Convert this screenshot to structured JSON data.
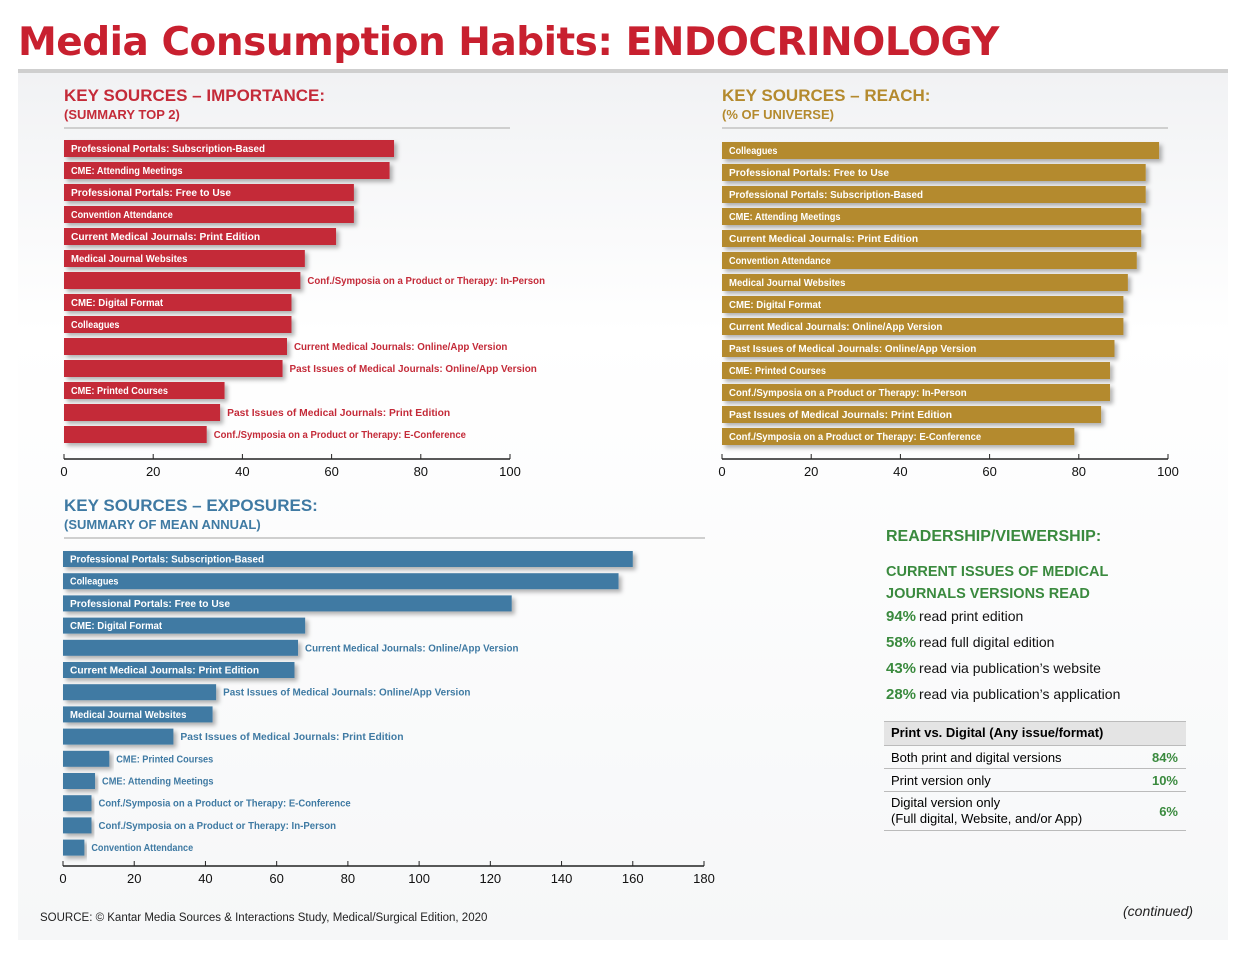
{
  "title": "Media Consumption Habits: ENDOCRINOLOGY",
  "colors": {
    "importance": "#c42b39",
    "reach": "#b48a2e",
    "exposures": "#3f7aa3",
    "title": "#c8202f",
    "green": "#3a8a3e"
  },
  "importance": {
    "title": "KEY SOURCES – IMPORTANCE:",
    "subtitle": "(SUMMARY TOP 2)",
    "chart_data": {
      "type": "bar",
      "orientation": "horizontal",
      "categories": [
        "Professional Portals: Subscription-Based",
        "CME: Attending Meetings",
        "Professional Portals: Free to Use",
        "Convention Attendance",
        "Current Medical Journals: Print Edition",
        "Medical Journal Websites",
        "Conf./Symposia on a Product or Therapy: In-Person",
        "CME: Digital Format",
        "Colleagues",
        "Current Medical Journals: Online/App Version",
        "Past Issues of Medical Journals: Online/App Version",
        "CME: Printed Courses",
        "Past Issues of Medical Journals: Print Edition",
        "Conf./Symposia on a Product or Therapy: E-Conference"
      ],
      "values": [
        74,
        73,
        65,
        65,
        61,
        54,
        53,
        51,
        51,
        50,
        49,
        36,
        35,
        32
      ],
      "xlim": [
        0,
        100
      ],
      "ticks": [
        0,
        20,
        40,
        60,
        80,
        100
      ]
    }
  },
  "reach": {
    "title": "KEY SOURCES – REACH:",
    "subtitle": "(% OF UNIVERSE)",
    "chart_data": {
      "type": "bar",
      "orientation": "horizontal",
      "categories": [
        "Colleagues",
        "Professional Portals: Free to Use",
        "Professional Portals: Subscription-Based",
        "CME: Attending Meetings",
        "Current Medical Journals: Print Edition",
        "Convention Attendance",
        "Medical Journal Websites",
        "CME: Digital Format",
        "Current Medical Journals: Online/App Version",
        "Past Issues of Medical Journals: Online/App Version",
        "CME: Printed Courses",
        "Conf./Symposia on a Product or Therapy: In-Person",
        "Past Issues of Medical Journals: Print Edition",
        "Conf./Symposia on a Product or Therapy: E-Conference"
      ],
      "values": [
        98,
        95,
        95,
        94,
        94,
        93,
        91,
        90,
        90,
        88,
        87,
        87,
        85,
        79
      ],
      "xlim": [
        0,
        100
      ],
      "ticks": [
        0,
        20,
        40,
        60,
        80,
        100
      ]
    }
  },
  "exposures": {
    "title": "KEY SOURCES – EXPOSURES:",
    "subtitle": "(SUMMARY OF MEAN ANNUAL)",
    "chart_data": {
      "type": "bar",
      "orientation": "horizontal",
      "categories": [
        "Professional Portals: Subscription-Based",
        "Colleagues",
        "Professional Portals: Free to Use",
        "CME: Digital Format",
        "Current Medical Journals: Online/App Version",
        "Current Medical Journals: Print Edition",
        "Past Issues of Medical Journals: Online/App Version",
        "Medical Journal Websites",
        "Past Issues of Medical Journals: Print Edition",
        "CME: Printed Courses",
        "CME: Attending Meetings",
        "Conf./Symposia on a Product or Therapy: E-Conference",
        "Conf./Symposia on a Product or Therapy: In-Person",
        "Convention Attendance"
      ],
      "values": [
        160,
        156,
        126,
        68,
        66,
        65,
        43,
        42,
        31,
        13,
        9,
        8,
        8,
        6
      ],
      "xlim": [
        0,
        180
      ],
      "ticks": [
        0,
        20,
        40,
        60,
        80,
        100,
        120,
        140,
        160,
        180
      ]
    }
  },
  "readership": {
    "title": "READERSHIP/VIEWERSHIP:",
    "subtitle": "CURRENT ISSUES OF MEDICAL JOURNALS VERSIONS READ",
    "items": [
      {
        "pct": "94%",
        "text": "read print edition"
      },
      {
        "pct": "58%",
        "text": "read full digital edition"
      },
      {
        "pct": "43%",
        "text": "read via publication’s website"
      },
      {
        "pct": "28%",
        "text": "read via publication’s application"
      }
    ],
    "table": {
      "header": "Print vs. Digital (Any issue/format)",
      "rows": [
        {
          "label": "Both print and digital versions",
          "value": "84%"
        },
        {
          "label": "Print version only",
          "value": "10%"
        },
        {
          "label": "Digital version only",
          "label2": "(Full digital, Website, and/or App)",
          "value": "6%"
        }
      ]
    }
  },
  "source": "SOURCE: © Kantar Media Sources & Interactions Study, Medical/Surgical Edition, 2020",
  "continued": "(continued)"
}
